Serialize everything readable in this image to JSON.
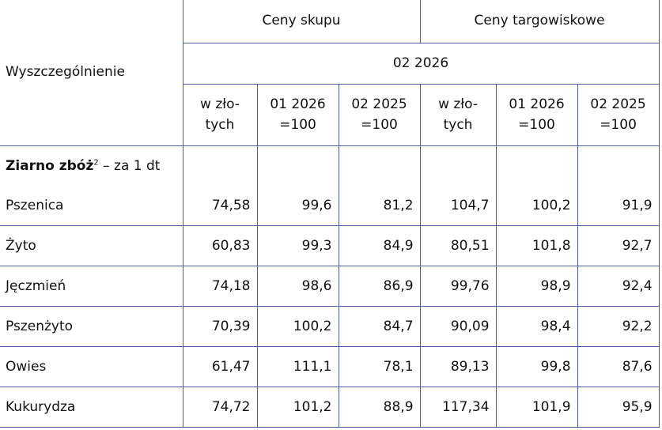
{
  "table": {
    "header": {
      "group1": "Ceny skupu",
      "group2": "Ceny targowiskowe",
      "period": "02 2026",
      "row_label": "Wyszczególnienie",
      "columns": [
        [
          "w zło-",
          "tych"
        ],
        [
          "01 2026",
          "=100"
        ],
        [
          "02 2025",
          "=100"
        ],
        [
          "w zło-",
          "tych"
        ],
        [
          "01 2026",
          "=100"
        ],
        [
          "02 2025",
          "=100"
        ]
      ]
    },
    "section": {
      "label": "Ziarno zbóż",
      "sup": "2",
      "rest": " – za 1 dt"
    },
    "rows": [
      [
        "Pszenica",
        "74,58",
        "99,6",
        "81,2",
        "104,7",
        "100,2",
        "91,9"
      ],
      [
        "Żyto",
        "60,83",
        "99,3",
        "84,9",
        "80,51",
        "101,8",
        "92,7"
      ],
      [
        "Jęczmień",
        "74,18",
        "98,6",
        "86,9",
        "99,76",
        "98,9",
        "92,4"
      ],
      [
        "Pszenżyto",
        "70,39",
        "100,2",
        "84,7",
        "90,09",
        "98,4",
        "92,2"
      ],
      [
        "Owies",
        "61,47",
        "111,1",
        "78,1",
        "89,13",
        "99,8",
        "87,6"
      ],
      [
        "Kukurydza",
        "74,72",
        "101,2",
        "88,9",
        "117,34",
        "101,9",
        "95,9"
      ]
    ]
  }
}
